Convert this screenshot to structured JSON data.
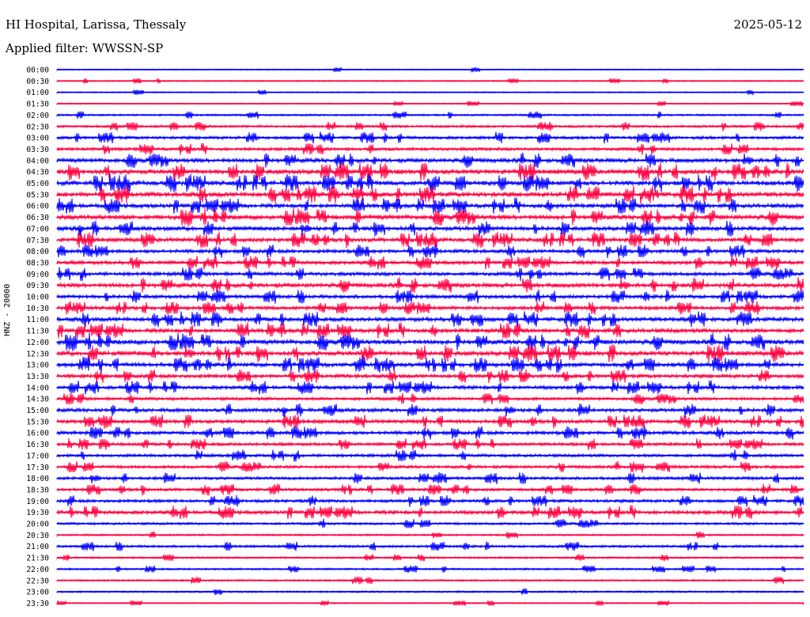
{
  "header": {
    "station": "HI Hospital, Larissa, Thessaly",
    "date": "2025-05-12",
    "filter": "Applied filter: WWSSN-SP"
  },
  "chart_data": {
    "type": "line",
    "title": "HI Hospital, Larissa, Thessaly",
    "subtitle": "Applied filter: WWSSN-SP",
    "ylabel": "HNZ - 20000",
    "xlabel": "",
    "grid": false,
    "line_colors": [
      "#0000ff",
      "#ff0040"
    ],
    "categories": [
      "00:00",
      "00:30",
      "01:00",
      "01:30",
      "02:00",
      "02:30",
      "03:00",
      "03:30",
      "04:00",
      "04:30",
      "05:00",
      "05:30",
      "06:00",
      "06:30",
      "07:00",
      "07:30",
      "08:00",
      "08:30",
      "09:00",
      "09:30",
      "10:00",
      "10:30",
      "11:00",
      "11:30",
      "12:00",
      "12:30",
      "13:00",
      "13:30",
      "14:00",
      "14:30",
      "15:00",
      "15:30",
      "16:00",
      "16:30",
      "17:00",
      "17:30",
      "18:00",
      "18:30",
      "19:00",
      "19:30",
      "20:00",
      "20:30",
      "21:00",
      "21:30",
      "22:00",
      "22:30",
      "23:00",
      "23:30"
    ],
    "activity": [
      1,
      1,
      1,
      1,
      2,
      3,
      4,
      4,
      6,
      7,
      7,
      7,
      6,
      7,
      6,
      6,
      5,
      5,
      5,
      6,
      5,
      5,
      6,
      6,
      7,
      7,
      6,
      5,
      5,
      4,
      5,
      5,
      5,
      4,
      4,
      4,
      4,
      4,
      4,
      5,
      3,
      2,
      3,
      2,
      2,
      2,
      2,
      1
    ]
  }
}
